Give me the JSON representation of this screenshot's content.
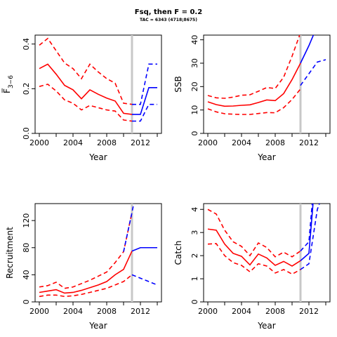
{
  "title": "Fsq, then F = 0.2",
  "subtitle": "TAC = 6343 (4718;8675)",
  "colors": {
    "hist": "#ff0000",
    "proj": "#0000ff",
    "vline": "#c8c8c8"
  },
  "chart_data": [
    {
      "type": "line",
      "xlabel": "Year",
      "ylabel": "F̅",
      "ylabel_sub": "3−6",
      "xlim": [
        1999.5,
        2014.5
      ],
      "ylim": [
        0,
        0.44
      ],
      "xticks": [
        2000,
        2004,
        2008,
        2012
      ],
      "yticks": [
        0,
        0.2,
        0.4
      ],
      "ytick_labels": [
        "0.0",
        "0.2",
        "0.4"
      ],
      "vline": 2011,
      "series": [
        {
          "role": "median-historic",
          "style": "solid",
          "x": [
            2000,
            2001,
            2002,
            2003,
            2004,
            2005,
            2006,
            2007,
            2008,
            2009,
            2010,
            2011
          ],
          "y": [
            0.29,
            0.31,
            0.265,
            0.215,
            0.195,
            0.155,
            0.195,
            0.175,
            0.158,
            0.145,
            0.09,
            0.085
          ]
        },
        {
          "role": "upper-historic",
          "style": "dashed",
          "x": [
            2000,
            2001,
            2002,
            2003,
            2004,
            2005,
            2006,
            2007,
            2008,
            2009,
            2010,
            2011
          ],
          "y": [
            0.395,
            0.425,
            0.37,
            0.315,
            0.29,
            0.245,
            0.31,
            0.275,
            0.245,
            0.225,
            0.135,
            0.13
          ]
        },
        {
          "role": "lower-historic",
          "style": "dashed",
          "x": [
            2000,
            2001,
            2002,
            2003,
            2004,
            2005,
            2006,
            2007,
            2008,
            2009,
            2010,
            2011
          ],
          "y": [
            0.21,
            0.22,
            0.19,
            0.15,
            0.135,
            0.105,
            0.125,
            0.115,
            0.105,
            0.1,
            0.06,
            0.055
          ]
        },
        {
          "role": "median-projected",
          "style": "solid",
          "x": [
            2011,
            2012,
            2013,
            2014
          ],
          "y": [
            0.085,
            0.085,
            0.205,
            0.205
          ]
        },
        {
          "role": "upper-projected",
          "style": "dashed",
          "x": [
            2011,
            2012,
            2013,
            2014
          ],
          "y": [
            0.13,
            0.13,
            0.31,
            0.31
          ]
        },
        {
          "role": "lower-projected",
          "style": "dashed",
          "x": [
            2011,
            2012,
            2013,
            2014
          ],
          "y": [
            0.055,
            0.055,
            0.13,
            0.13
          ]
        }
      ]
    },
    {
      "type": "line",
      "xlabel": "Year",
      "ylabel": "SSB",
      "xlim": [
        1999.5,
        2014.5
      ],
      "ylim": [
        0,
        42
      ],
      "xticks": [
        2000,
        2004,
        2008,
        2012
      ],
      "yticks": [
        0,
        10,
        20,
        30,
        40
      ],
      "ytick_labels": [
        "0",
        "10",
        "20",
        "30",
        "40"
      ],
      "vline": 2011,
      "series": [
        {
          "role": "median-historic",
          "style": "solid",
          "x": [
            2000,
            2001,
            2002,
            2003,
            2004,
            2005,
            2006,
            2007,
            2008,
            2009,
            2010,
            2011
          ],
          "y": [
            13.5,
            12.3,
            11.6,
            11.7,
            12,
            12.2,
            13.2,
            14.3,
            14,
            17,
            23,
            30
          ]
        },
        {
          "role": "upper-historic",
          "style": "dashed",
          "x": [
            2000,
            2001,
            2002,
            2003,
            2004,
            2005,
            2006,
            2007,
            2008,
            2009,
            2010,
            2011
          ],
          "y": [
            16.2,
            15.2,
            15,
            15.5,
            16.3,
            16.5,
            18,
            19.6,
            19.2,
            24,
            33,
            43
          ]
        },
        {
          "role": "lower-historic",
          "style": "dashed",
          "x": [
            2000,
            2001,
            2002,
            2003,
            2004,
            2005,
            2006,
            2007,
            2008,
            2009,
            2010,
            2011
          ],
          "y": [
            10.5,
            9.2,
            8.4,
            8.2,
            8.1,
            8.1,
            8.5,
            8.9,
            8.8,
            11,
            14.5,
            19
          ]
        },
        {
          "role": "median-projected",
          "style": "solid",
          "x": [
            2011,
            2012,
            2013
          ],
          "y": [
            30,
            37.5,
            46
          ]
        },
        {
          "role": "lower-projected",
          "style": "dashed",
          "x": [
            2011,
            2012,
            2013,
            2014
          ],
          "y": [
            20.5,
            25.5,
            30.5,
            31.5
          ]
        }
      ]
    },
    {
      "type": "line",
      "xlabel": "Year",
      "ylabel": "Recruitment",
      "xlim": [
        1999.5,
        2014.5
      ],
      "ylim": [
        0,
        145
      ],
      "xticks": [
        2000,
        2004,
        2008,
        2012
      ],
      "yticks": [
        0,
        40,
        80,
        120
      ],
      "ytick_labels": [
        "0",
        "40",
        "80",
        "120"
      ],
      "vline": 2011,
      "series": [
        {
          "role": "median-historic",
          "style": "solid",
          "x": [
            2000,
            2001,
            2002,
            2003,
            2004,
            2005,
            2006,
            2007,
            2008,
            2009,
            2010,
            2011
          ],
          "y": [
            14,
            16,
            18,
            13,
            14,
            17,
            21,
            25,
            30,
            40,
            48,
            75
          ]
        },
        {
          "role": "upper-historic",
          "style": "dashed",
          "x": [
            2000,
            2001,
            2002,
            2003,
            2004,
            2005,
            2006,
            2007,
            2008,
            2009,
            2010,
            2011
          ],
          "y": [
            22,
            24,
            29,
            20,
            22,
            27,
            32,
            38,
            44,
            58,
            74,
            132
          ]
        },
        {
          "role": "lower-historic",
          "style": "dashed",
          "x": [
            2000,
            2001,
            2002,
            2003,
            2004,
            2005,
            2006,
            2007,
            2008,
            2009,
            2010,
            2011
          ],
          "y": [
            8,
            10,
            10,
            8,
            9,
            11,
            14,
            17,
            20,
            25,
            30,
            40
          ]
        },
        {
          "role": "median-projected",
          "style": "solid",
          "x": [
            2011,
            2012,
            2013,
            2014
          ],
          "y": [
            75,
            80,
            80,
            80
          ]
        },
        {
          "role": "upper-projected",
          "style": "dashed",
          "x": [
            2010,
            2011,
            2011.3
          ],
          "y": [
            74,
            132,
            150
          ]
        },
        {
          "role": "lower-projected",
          "style": "dashed",
          "x": [
            2011,
            2012,
            2013,
            2014
          ],
          "y": [
            40,
            35,
            30,
            25
          ]
        }
      ]
    },
    {
      "type": "line",
      "xlabel": "Year",
      "ylabel": "Catch",
      "xlim": [
        1999.5,
        2014.5
      ],
      "ylim": [
        0,
        4.25
      ],
      "xticks": [
        2000,
        2004,
        2008,
        2012
      ],
      "yticks": [
        0,
        1,
        2,
        3,
        4
      ],
      "ytick_labels": [
        "0",
        "1",
        "2",
        "3",
        "4"
      ],
      "vline": 2011,
      "series": [
        {
          "role": "median-historic",
          "style": "solid",
          "x": [
            2000,
            2001,
            2002,
            2003,
            2004,
            2005,
            2006,
            2007,
            2008,
            2009,
            2010,
            2011
          ],
          "y": [
            3.15,
            3.1,
            2.5,
            2.1,
            1.97,
            1.6,
            2.07,
            1.9,
            1.58,
            1.75,
            1.55,
            1.78
          ]
        },
        {
          "role": "upper-historic",
          "style": "dashed",
          "x": [
            2000,
            2001,
            2002,
            2003,
            2004,
            2005,
            2006,
            2007,
            2008,
            2009,
            2010,
            2011
          ],
          "y": [
            4,
            3.8,
            3.1,
            2.6,
            2.4,
            2.0,
            2.55,
            2.35,
            1.95,
            2.15,
            1.95,
            2.2
          ]
        },
        {
          "role": "lower-historic",
          "style": "dashed",
          "x": [
            2000,
            2001,
            2002,
            2003,
            2004,
            2005,
            2006,
            2007,
            2008,
            2009,
            2010,
            2011
          ],
          "y": [
            2.5,
            2.52,
            2.0,
            1.7,
            1.58,
            1.3,
            1.65,
            1.55,
            1.25,
            1.4,
            1.2,
            1.4
          ]
        },
        {
          "role": "median-projected",
          "style": "solid",
          "x": [
            2011,
            2012,
            2012.5
          ],
          "y": [
            1.78,
            2.1,
            4.3
          ]
        },
        {
          "role": "upper-projected",
          "style": "dashed",
          "x": [
            2011,
            2012,
            2012.4
          ],
          "y": [
            2.2,
            2.6,
            4.3
          ]
        },
        {
          "role": "lower-projected",
          "style": "dashed",
          "x": [
            2011,
            2012,
            2013,
            2013.3
          ],
          "y": [
            1.4,
            1.65,
            4.0,
            4.3
          ]
        }
      ]
    }
  ]
}
